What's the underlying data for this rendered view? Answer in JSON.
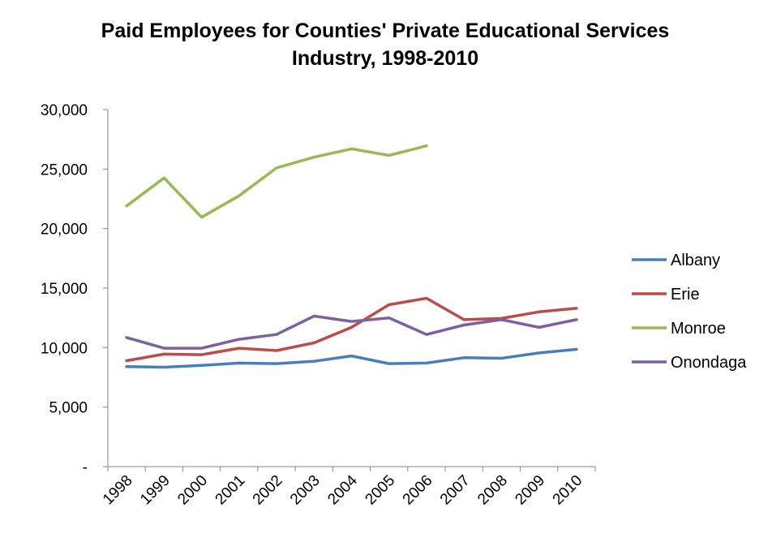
{
  "chart_data": {
    "type": "line",
    "title_lines": [
      "Paid Employees for Counties' Private Educational Services",
      "Industry, 1998-2010"
    ],
    "categories": [
      "1998",
      "1999",
      "2000",
      "2001",
      "2002",
      "2003",
      "2004",
      "2005",
      "2006",
      "2007",
      "2008",
      "2009",
      "2010"
    ],
    "ylim": [
      0,
      30000
    ],
    "yticks": [
      0,
      5000,
      10000,
      15000,
      20000,
      25000,
      30000
    ],
    "ytick_labels": [
      "-",
      "5,000",
      "10,000",
      "15,000",
      "20,000",
      "25,000",
      "30,000"
    ],
    "grid": false,
    "legend_position": "right",
    "series": [
      {
        "name": "Albany",
        "color": "#4a7ebb",
        "values": [
          8400,
          8350,
          8500,
          8700,
          8650,
          8850,
          9300,
          8650,
          8700,
          9150,
          9100,
          9550,
          9850
        ]
      },
      {
        "name": "Erie",
        "color": "#be4b48",
        "values": [
          8900,
          9450,
          9400,
          9950,
          9750,
          10400,
          11700,
          13600,
          14150,
          12350,
          12450,
          13000,
          13300
        ]
      },
      {
        "name": "Monroe",
        "color": "#98b954",
        "values": [
          21900,
          24250,
          20950,
          22750,
          25100,
          26000,
          26700,
          26150,
          26950,
          null,
          null,
          null,
          null
        ]
      },
      {
        "name": "Onondaga",
        "color": "#7d60a0",
        "values": [
          10850,
          9950,
          9950,
          10700,
          11100,
          12650,
          12200,
          12500,
          11100,
          11900,
          12350,
          11700,
          12350
        ]
      }
    ]
  }
}
